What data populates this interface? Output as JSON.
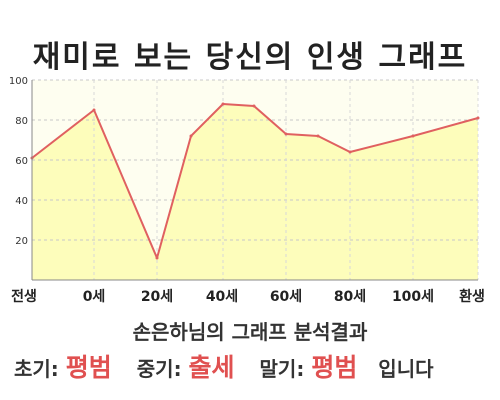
{
  "title": "재미로 보는 당신의 인생 그래프",
  "summary": "손은하님의 그래프 분석결과",
  "result": {
    "early_label": "초기:",
    "early_value": "평범",
    "mid_label": "중기:",
    "mid_value": "출세",
    "late_label": "말기:",
    "late_value": "평범",
    "ending": "입니다"
  },
  "colors": {
    "line": "#e06060",
    "fill": "#fdfdbb",
    "background": "#fefef0",
    "highlight": "#e05050"
  },
  "chart_data": {
    "type": "area",
    "title": "재미로 보는 당신의 인생 그래프",
    "xlabel": "",
    "ylabel": "",
    "ylim": [
      0,
      100
    ],
    "yticks": [
      "20",
      "40",
      "60",
      "80",
      "100"
    ],
    "categories": [
      "전생",
      "0세",
      "20세",
      "40세",
      "60세",
      "80세",
      "100세",
      "환생"
    ],
    "series": [
      {
        "points": [
          {
            "x": "전생",
            "y": 61
          },
          {
            "x": "0세",
            "y": 85
          },
          {
            "x": "20세",
            "y": 11
          },
          {
            "x": "30세",
            "y": 72
          },
          {
            "x": "40세",
            "y": 88
          },
          {
            "x": "50세",
            "y": 87
          },
          {
            "x": "60세",
            "y": 73
          },
          {
            "x": "70세",
            "y": 72
          },
          {
            "x": "80세",
            "y": 64
          },
          {
            "x": "100세",
            "y": 72
          },
          {
            "x": "환생",
            "y": 81
          }
        ]
      }
    ],
    "grid": true
  }
}
